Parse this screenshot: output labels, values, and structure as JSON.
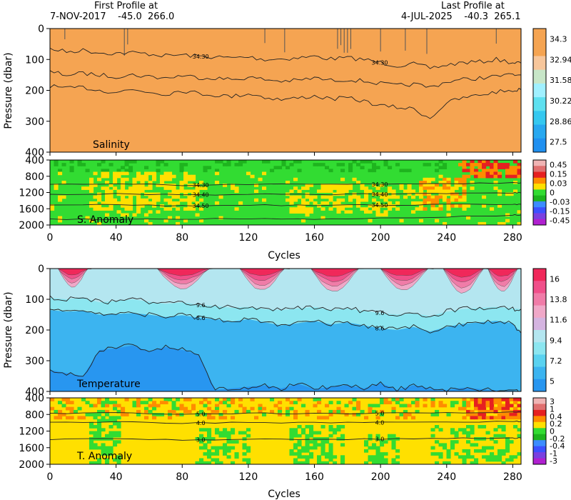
{
  "header": {
    "first_label": "First Profile at",
    "first_value": "7-NOV-2017    -45.0  266.0",
    "last_label": "Last Profile at",
    "last_value": "4-JUL-2025    -40.3  265.1"
  },
  "chart_data": [
    {
      "id": "salinity",
      "type": "heatmap",
      "title": "Salinity",
      "ylabel": "Pressure (dbar)",
      "xlim": [
        0,
        285
      ],
      "ylim": [
        400,
        0
      ],
      "yticks": [
        "0",
        "100",
        "200",
        "300",
        "400"
      ],
      "fill_color": "#f5a452",
      "colorbar": {
        "labels": [
          "34.3",
          "32.94",
          "31.58",
          "30.22",
          "28.86",
          "27.5"
        ],
        "colors": [
          "#f5a452",
          "#f5a452",
          "#f7c69b",
          "#c8e6c8",
          "#a0f0ff",
          "#5ee0f0",
          "#35c8f0",
          "#28a8f0",
          "#2090f0"
        ]
      },
      "contour_labels": [
        "34.30"
      ],
      "contours": [
        {
          "level": "upper",
          "x": [
            0,
            10,
            20,
            30,
            40,
            50,
            60,
            70,
            80,
            90,
            100,
            110,
            120,
            130,
            140,
            150,
            160,
            170,
            180,
            190,
            200,
            210,
            220,
            230,
            240,
            250,
            260,
            270,
            280,
            285
          ],
          "y": [
            65,
            75,
            70,
            78,
            80,
            78,
            82,
            88,
            85,
            90,
            92,
            95,
            92,
            100,
            98,
            95,
            90,
            98,
            95,
            100,
            110,
            120,
            115,
            128,
            118,
            110,
            108,
            100,
            110,
            112
          ]
        },
        {
          "level": "middle",
          "x": [
            0,
            10,
            20,
            30,
            40,
            50,
            60,
            70,
            80,
            90,
            100,
            110,
            120,
            130,
            140,
            150,
            160,
            170,
            180,
            190,
            200,
            210,
            220,
            230,
            240,
            250,
            260,
            270,
            280,
            285
          ],
          "y": [
            140,
            150,
            145,
            150,
            155,
            150,
            155,
            160,
            152,
            158,
            160,
            165,
            158,
            165,
            170,
            168,
            160,
            168,
            165,
            170,
            178,
            185,
            180,
            190,
            172,
            165,
            160,
            155,
            150,
            150
          ]
        },
        {
          "level": "lower",
          "x": [
            0,
            10,
            20,
            30,
            40,
            50,
            60,
            70,
            80,
            90,
            100,
            110,
            120,
            130,
            140,
            150,
            160,
            170,
            180,
            190,
            200,
            210,
            220,
            230,
            240,
            250,
            260,
            270,
            280,
            285
          ],
          "y": [
            185,
            195,
            190,
            200,
            205,
            198,
            205,
            212,
            200,
            210,
            215,
            220,
            210,
            222,
            230,
            225,
            218,
            228,
            225,
            235,
            250,
            255,
            260,
            290,
            240,
            225,
            215,
            205,
            200,
            198
          ]
        }
      ]
    },
    {
      "id": "s_anomaly",
      "type": "heatmap",
      "title": "S. Anomaly",
      "xlabel": "Cycles",
      "xlim": [
        0,
        285
      ],
      "ylim": [
        2000,
        400
      ],
      "xticks": [
        "0",
        "40",
        "80",
        "120",
        "160",
        "200",
        "240",
        "280"
      ],
      "yticks": [
        "400",
        "800",
        "1200",
        "1600",
        "2000"
      ],
      "colorbar": {
        "labels": [
          "0.45",
          "0.15",
          "0.03",
          "0",
          "-0.03",
          "-0.15",
          "-0.45"
        ],
        "colors": [
          "#f0b4b4",
          "#e07070",
          "#e62020",
          "#ff8c00",
          "#ffe000",
          "#32dc32",
          "#1eb41e",
          "#3c8cff",
          "#3c50ff",
          "#7a40e0",
          "#b020d0"
        ]
      },
      "contour_labels": [
        "34.30",
        "34.40",
        "34.50"
      ],
      "contours": [
        {
          "level": "34.30",
          "x": [
            0,
            40,
            80,
            120,
            160,
            200,
            240,
            280,
            285
          ],
          "y": [
            1000,
            980,
            1020,
            1000,
            990,
            1000,
            980,
            960,
            960
          ]
        },
        {
          "level": "34.40",
          "x": [
            0,
            40,
            80,
            120,
            160,
            200,
            240,
            280,
            285
          ],
          "y": [
            1250,
            1230,
            1260,
            1240,
            1250,
            1240,
            1230,
            1210,
            1210
          ]
        },
        {
          "level": "34.50",
          "x": [
            0,
            40,
            80,
            120,
            160,
            200,
            240,
            280,
            285
          ],
          "y": [
            1520,
            1500,
            1530,
            1510,
            1520,
            1510,
            1500,
            1490,
            1490
          ]
        },
        {
          "level": "deep",
          "x": [
            0,
            40,
            80,
            120,
            160,
            200,
            240,
            280,
            285
          ],
          "y": [
            1850,
            1860,
            1850,
            1840,
            1850,
            1840,
            1800,
            1760,
            1750
          ]
        }
      ]
    },
    {
      "id": "temperature",
      "type": "heatmap",
      "title": "Temperature",
      "ylabel": "Pressure (dbar)",
      "xlim": [
        0,
        285
      ],
      "ylim": [
        400,
        0
      ],
      "yticks": [
        "0",
        "100",
        "200",
        "300",
        "400"
      ],
      "colorbar": {
        "labels": [
          "16",
          "13.8",
          "11.6",
          "9.4",
          "7.2",
          "5"
        ],
        "colors": [
          "#f0285a",
          "#f0508a",
          "#f07ca8",
          "#f0a8c8",
          "#d4b4e0",
          "#b4e6f0",
          "#8ce6f0",
          "#5ad2f0",
          "#3cb4f0",
          "#2896f0"
        ]
      },
      "contour_labels": [
        "9.6",
        "8.6"
      ],
      "summer_patches": [
        {
          "x0": 5,
          "x1": 25,
          "depth": 60
        },
        {
          "x0": 65,
          "x1": 100,
          "depth": 65
        },
        {
          "x0": 115,
          "x1": 145,
          "depth": 70
        },
        {
          "x0": 158,
          "x1": 190,
          "depth": 75
        },
        {
          "x0": 200,
          "x1": 232,
          "depth": 70
        },
        {
          "x0": 238,
          "x1": 265,
          "depth": 80
        },
        {
          "x0": 265,
          "x1": 285,
          "depth": 75
        }
      ],
      "contours": [
        {
          "level": "9.6",
          "x": [
            0,
            10,
            20,
            30,
            40,
            50,
            60,
            70,
            80,
            90,
            100,
            110,
            120,
            130,
            140,
            150,
            160,
            170,
            180,
            190,
            200,
            210,
            220,
            230,
            240,
            250,
            260,
            270,
            280,
            285
          ],
          "y": [
            95,
            100,
            95,
            110,
            105,
            100,
            108,
            115,
            110,
            118,
            122,
            128,
            125,
            132,
            135,
            130,
            125,
            135,
            130,
            138,
            145,
            150,
            145,
            155,
            140,
            132,
            128,
            125,
            130,
            132
          ]
        },
        {
          "level": "8.6",
          "x": [
            0,
            10,
            20,
            30,
            40,
            50,
            60,
            70,
            80,
            90,
            100,
            110,
            120,
            130,
            140,
            150,
            160,
            170,
            180,
            190,
            200,
            210,
            220,
            230,
            240,
            250,
            260,
            270,
            280,
            285
          ],
          "y": [
            135,
            140,
            138,
            150,
            148,
            145,
            150,
            158,
            152,
            160,
            165,
            172,
            165,
            175,
            185,
            178,
            170,
            182,
            175,
            185,
            195,
            200,
            190,
            205,
            190,
            180,
            175,
            170,
            178,
            210
          ]
        },
        {
          "level": "7.6",
          "x": [
            0,
            10,
            20,
            30,
            40,
            50,
            60,
            70,
            80,
            90,
            100,
            110,
            120,
            130,
            140,
            150,
            160,
            170,
            180,
            190,
            200,
            210,
            220,
            230,
            240,
            250,
            260,
            270,
            280,
            285
          ],
          "y": [
            330,
            340,
            350,
            265,
            260,
            250,
            270,
            255,
            265,
            280,
            395,
            390,
            385,
            380,
            390,
            375,
            392,
            385,
            380,
            390,
            372,
            395,
            380,
            390,
            395,
            388,
            392,
            396,
            398,
            400
          ]
        }
      ]
    },
    {
      "id": "t_anomaly",
      "type": "heatmap",
      "title": "T. Anomaly",
      "xlabel": "Cycles",
      "xlim": [
        0,
        285
      ],
      "ylim": [
        2000,
        400
      ],
      "xticks": [
        "0",
        "40",
        "80",
        "120",
        "160",
        "200",
        "240",
        "280"
      ],
      "yticks": [
        "400",
        "800",
        "1200",
        "1600",
        "2000"
      ],
      "colorbar": {
        "labels": [
          "3",
          "1",
          "0.4",
          "0.2",
          "0",
          "-0.2",
          "-0.4",
          "-1",
          "-3"
        ],
        "colors": [
          "#f0b4b4",
          "#e07070",
          "#e62020",
          "#ff8c00",
          "#ffe000",
          "#32dc32",
          "#1eb41e",
          "#3c8cff",
          "#3c50ff",
          "#7a40e0",
          "#b020d0"
        ]
      },
      "contour_labels": [
        "5.0",
        "4.0",
        "3.0"
      ],
      "contours": [
        {
          "level": "5.0",
          "x": [
            0,
            40,
            80,
            120,
            160,
            200,
            240,
            280,
            285
          ],
          "y": [
            780,
            760,
            790,
            770,
            780,
            770,
            760,
            740,
            740
          ]
        },
        {
          "level": "4.0",
          "x": [
            0,
            40,
            80,
            120,
            160,
            200,
            240,
            280,
            285
          ],
          "y": [
            1000,
            980,
            1010,
            990,
            1000,
            990,
            985,
            970,
            970
          ]
        },
        {
          "level": "3.0",
          "x": [
            0,
            40,
            80,
            120,
            160,
            200,
            240,
            280,
            285
          ],
          "y": [
            1400,
            1380,
            1410,
            1390,
            1400,
            1390,
            1380,
            1370,
            1370
          ]
        }
      ]
    }
  ]
}
